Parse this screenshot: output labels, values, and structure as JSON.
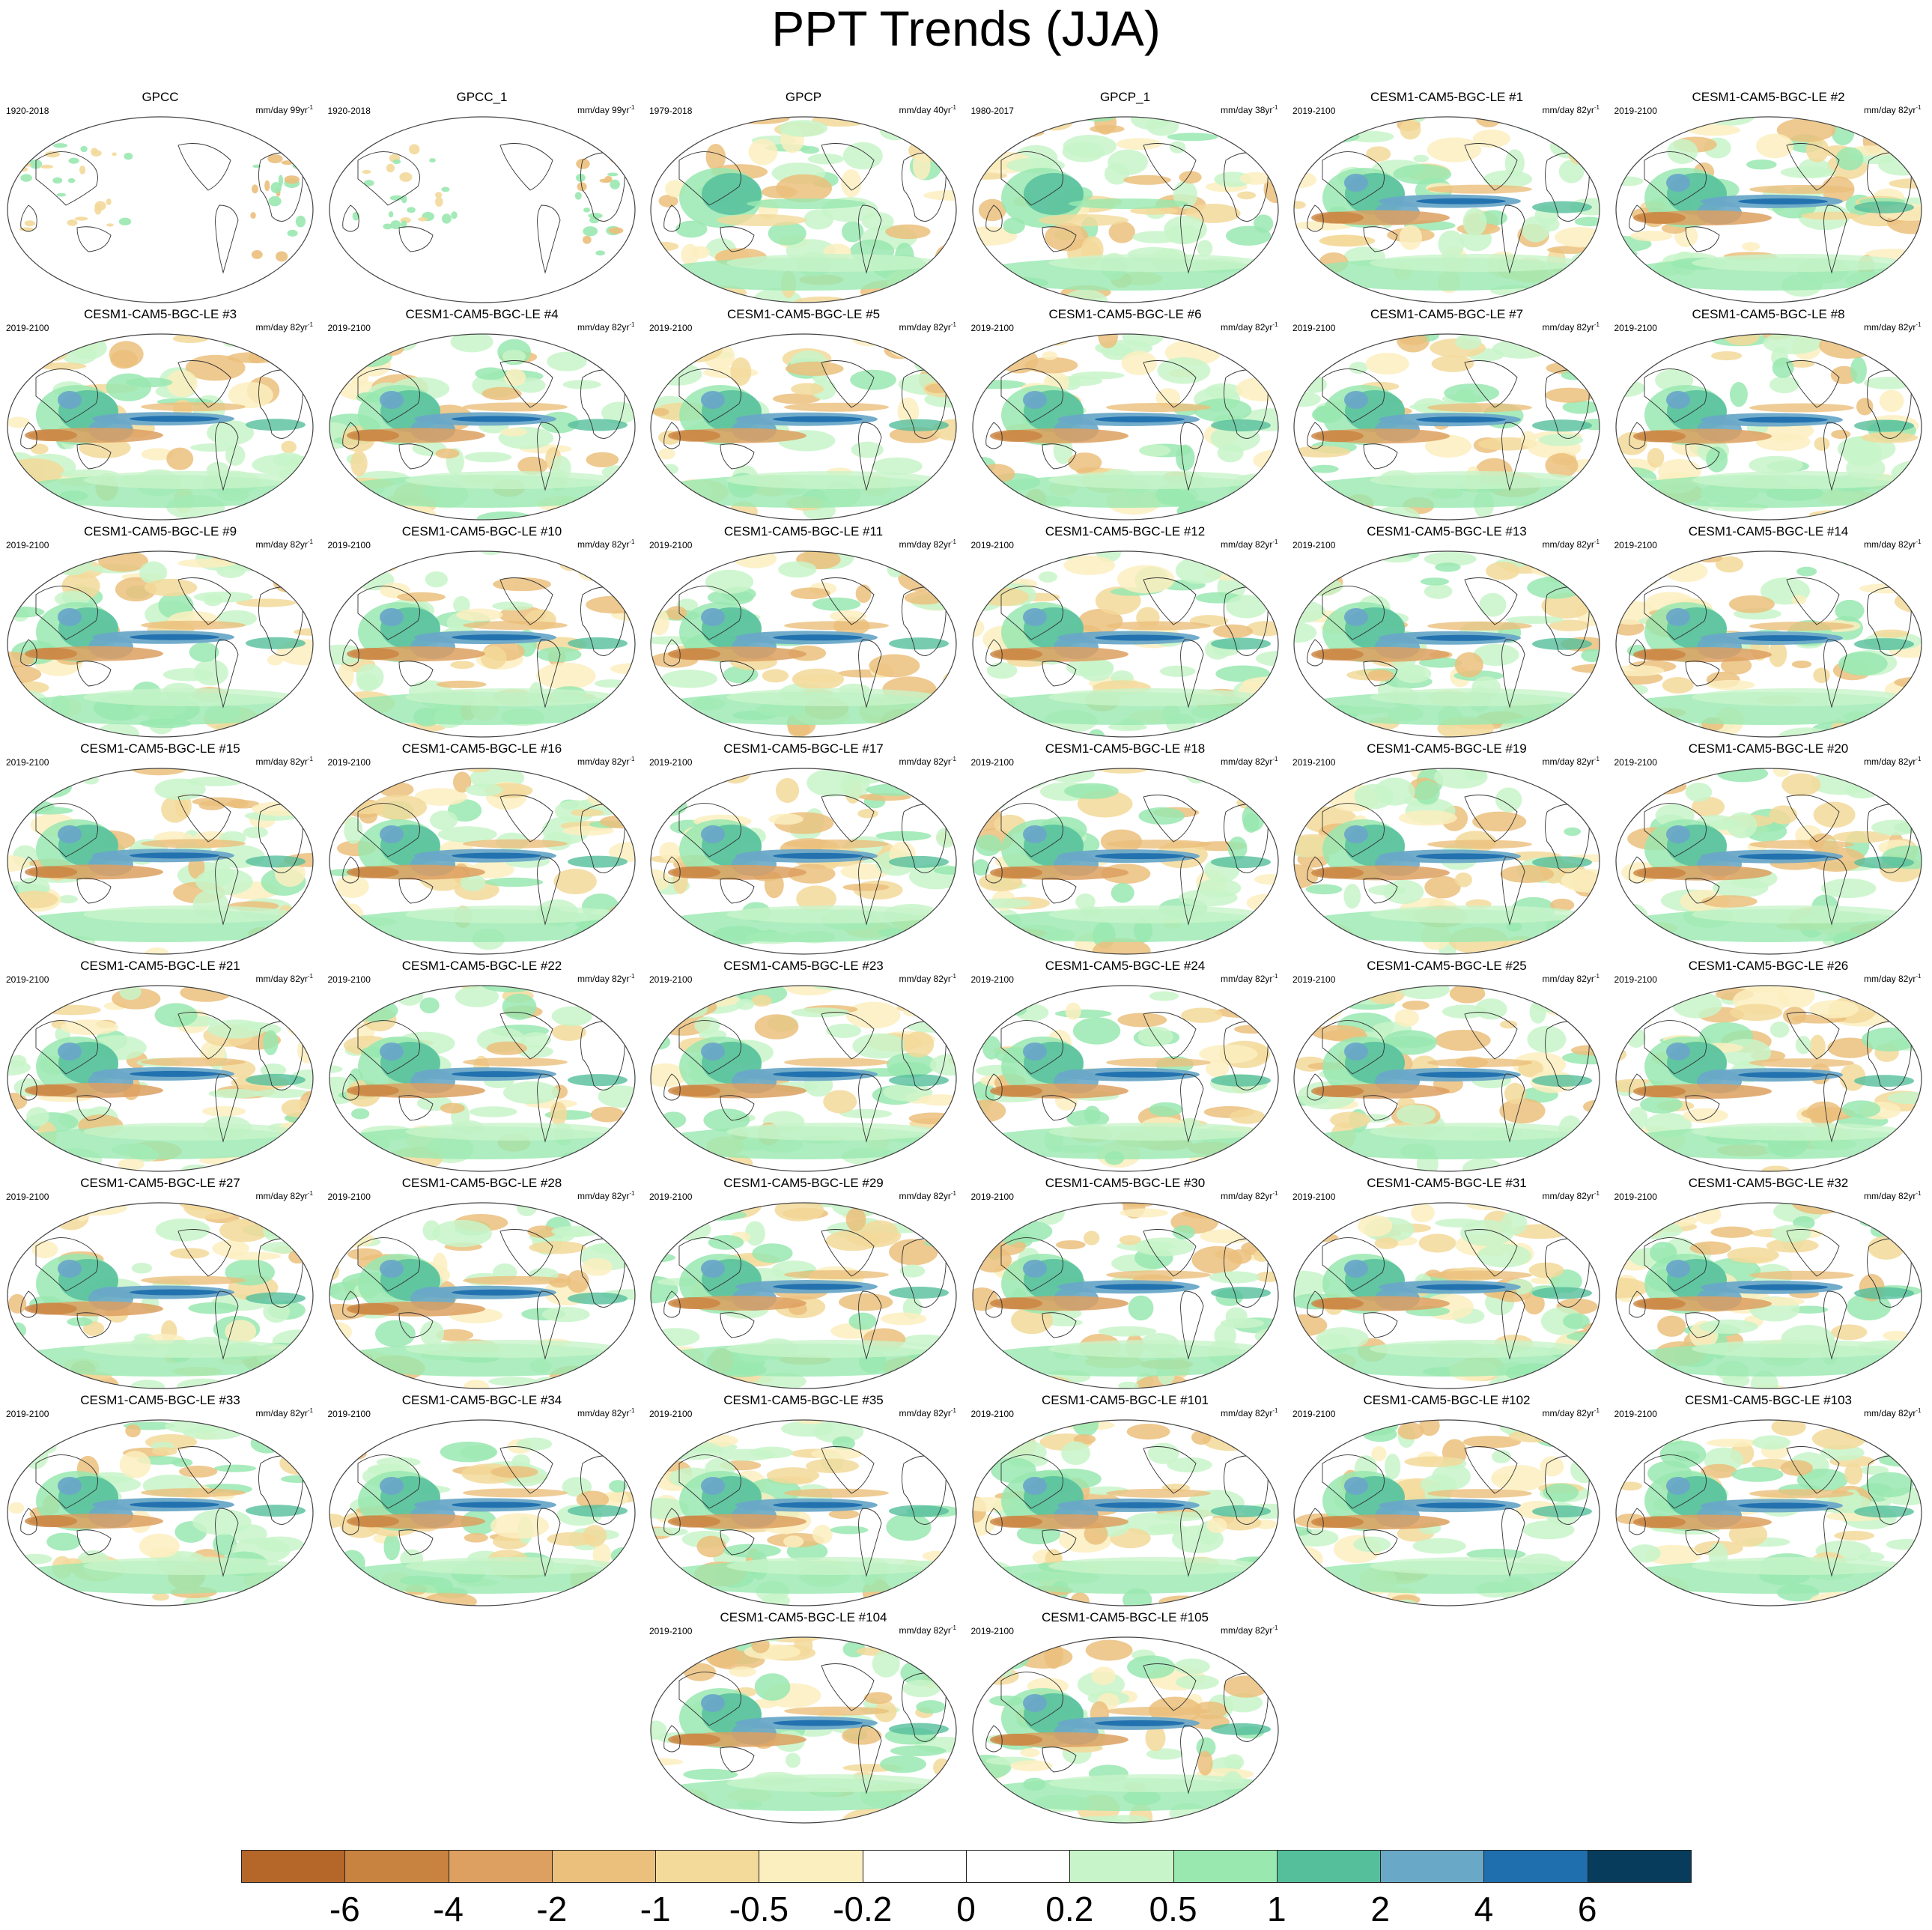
{
  "title": "PPT Trends (JJA)",
  "panels": [
    {
      "title": "GPCC",
      "period": "1920-2018",
      "units": "mm/day 99yr",
      "units_exp": "-1",
      "kind": "obs"
    },
    {
      "title": "GPCC_1",
      "period": "1920-2018",
      "units": "mm/day 99yr",
      "units_exp": "-1",
      "kind": "obs"
    },
    {
      "title": "GPCP",
      "period": "1979-2018",
      "units": "mm/day 40yr",
      "units_exp": "-1",
      "kind": "sat"
    },
    {
      "title": "GPCP_1",
      "period": "1980-2017",
      "units": "mm/day 38yr",
      "units_exp": "-1",
      "kind": "sat"
    },
    {
      "title": "CESM1-CAM5-BGC-LE #1",
      "period": "2019-2100",
      "units": "mm/day 82yr",
      "units_exp": "-1",
      "kind": "model"
    },
    {
      "title": "CESM1-CAM5-BGC-LE #2",
      "period": "2019-2100",
      "units": "mm/day 82yr",
      "units_exp": "-1",
      "kind": "model"
    },
    {
      "title": "CESM1-CAM5-BGC-LE #3",
      "period": "2019-2100",
      "units": "mm/day 82yr",
      "units_exp": "-1",
      "kind": "model"
    },
    {
      "title": "CESM1-CAM5-BGC-LE #4",
      "period": "2019-2100",
      "units": "mm/day 82yr",
      "units_exp": "-1",
      "kind": "model"
    },
    {
      "title": "CESM1-CAM5-BGC-LE #5",
      "period": "2019-2100",
      "units": "mm/day 82yr",
      "units_exp": "-1",
      "kind": "model"
    },
    {
      "title": "CESM1-CAM5-BGC-LE #6",
      "period": "2019-2100",
      "units": "mm/day 82yr",
      "units_exp": "-1",
      "kind": "model"
    },
    {
      "title": "CESM1-CAM5-BGC-LE #7",
      "period": "2019-2100",
      "units": "mm/day 82yr",
      "units_exp": "-1",
      "kind": "model"
    },
    {
      "title": "CESM1-CAM5-BGC-LE #8",
      "period": "2019-2100",
      "units": "mm/day 82yr",
      "units_exp": "-1",
      "kind": "model"
    },
    {
      "title": "CESM1-CAM5-BGC-LE #9",
      "period": "2019-2100",
      "units": "mm/day 82yr",
      "units_exp": "-1",
      "kind": "model"
    },
    {
      "title": "CESM1-CAM5-BGC-LE #10",
      "period": "2019-2100",
      "units": "mm/day 82yr",
      "units_exp": "-1",
      "kind": "model"
    },
    {
      "title": "CESM1-CAM5-BGC-LE #11",
      "period": "2019-2100",
      "units": "mm/day 82yr",
      "units_exp": "-1",
      "kind": "model"
    },
    {
      "title": "CESM1-CAM5-BGC-LE #12",
      "period": "2019-2100",
      "units": "mm/day 82yr",
      "units_exp": "-1",
      "kind": "model"
    },
    {
      "title": "CESM1-CAM5-BGC-LE #13",
      "period": "2019-2100",
      "units": "mm/day 82yr",
      "units_exp": "-1",
      "kind": "model"
    },
    {
      "title": "CESM1-CAM5-BGC-LE #14",
      "period": "2019-2100",
      "units": "mm/day 82yr",
      "units_exp": "-1",
      "kind": "model"
    },
    {
      "title": "CESM1-CAM5-BGC-LE #15",
      "period": "2019-2100",
      "units": "mm/day 82yr",
      "units_exp": "-1",
      "kind": "model"
    },
    {
      "title": "CESM1-CAM5-BGC-LE #16",
      "period": "2019-2100",
      "units": "mm/day 82yr",
      "units_exp": "-1",
      "kind": "model"
    },
    {
      "title": "CESM1-CAM5-BGC-LE #17",
      "period": "2019-2100",
      "units": "mm/day 82yr",
      "units_exp": "-1",
      "kind": "model"
    },
    {
      "title": "CESM1-CAM5-BGC-LE #18",
      "period": "2019-2100",
      "units": "mm/day 82yr",
      "units_exp": "-1",
      "kind": "model"
    },
    {
      "title": "CESM1-CAM5-BGC-LE #19",
      "period": "2019-2100",
      "units": "mm/day 82yr",
      "units_exp": "-1",
      "kind": "model"
    },
    {
      "title": "CESM1-CAM5-BGC-LE #20",
      "period": "2019-2100",
      "units": "mm/day 82yr",
      "units_exp": "-1",
      "kind": "model"
    },
    {
      "title": "CESM1-CAM5-BGC-LE #21",
      "period": "2019-2100",
      "units": "mm/day 82yr",
      "units_exp": "-1",
      "kind": "model"
    },
    {
      "title": "CESM1-CAM5-BGC-LE #22",
      "period": "2019-2100",
      "units": "mm/day 82yr",
      "units_exp": "-1",
      "kind": "model"
    },
    {
      "title": "CESM1-CAM5-BGC-LE #23",
      "period": "2019-2100",
      "units": "mm/day 82yr",
      "units_exp": "-1",
      "kind": "model"
    },
    {
      "title": "CESM1-CAM5-BGC-LE #24",
      "period": "2019-2100",
      "units": "mm/day 82yr",
      "units_exp": "-1",
      "kind": "model"
    },
    {
      "title": "CESM1-CAM5-BGC-LE #25",
      "period": "2019-2100",
      "units": "mm/day 82yr",
      "units_exp": "-1",
      "kind": "model"
    },
    {
      "title": "CESM1-CAM5-BGC-LE #26",
      "period": "2019-2100",
      "units": "mm/day 82yr",
      "units_exp": "-1",
      "kind": "model"
    },
    {
      "title": "CESM1-CAM5-BGC-LE #27",
      "period": "2019-2100",
      "units": "mm/day 82yr",
      "units_exp": "-1",
      "kind": "model"
    },
    {
      "title": "CESM1-CAM5-BGC-LE #28",
      "period": "2019-2100",
      "units": "mm/day 82yr",
      "units_exp": "-1",
      "kind": "model"
    },
    {
      "title": "CESM1-CAM5-BGC-LE #29",
      "period": "2019-2100",
      "units": "mm/day 82yr",
      "units_exp": "-1",
      "kind": "model"
    },
    {
      "title": "CESM1-CAM5-BGC-LE #30",
      "period": "2019-2100",
      "units": "mm/day 82yr",
      "units_exp": "-1",
      "kind": "model"
    },
    {
      "title": "CESM1-CAM5-BGC-LE #31",
      "period": "2019-2100",
      "units": "mm/day 82yr",
      "units_exp": "-1",
      "kind": "model"
    },
    {
      "title": "CESM1-CAM5-BGC-LE #32",
      "period": "2019-2100",
      "units": "mm/day 82yr",
      "units_exp": "-1",
      "kind": "model"
    },
    {
      "title": "CESM1-CAM5-BGC-LE #33",
      "period": "2019-2100",
      "units": "mm/day 82yr",
      "units_exp": "-1",
      "kind": "model"
    },
    {
      "title": "CESM1-CAM5-BGC-LE #34",
      "period": "2019-2100",
      "units": "mm/day 82yr",
      "units_exp": "-1",
      "kind": "model"
    },
    {
      "title": "CESM1-CAM5-BGC-LE #35",
      "period": "2019-2100",
      "units": "mm/day 82yr",
      "units_exp": "-1",
      "kind": "model"
    },
    {
      "title": "CESM1-CAM5-BGC-LE #101",
      "period": "2019-2100",
      "units": "mm/day 82yr",
      "units_exp": "-1",
      "kind": "model"
    },
    {
      "title": "CESM1-CAM5-BGC-LE #102",
      "period": "2019-2100",
      "units": "mm/day 82yr",
      "units_exp": "-1",
      "kind": "model"
    },
    {
      "title": "CESM1-CAM5-BGC-LE #103",
      "period": "2019-2100",
      "units": "mm/day 82yr",
      "units_exp": "-1",
      "kind": "model"
    },
    {
      "title": "CESM1-CAM5-BGC-LE #104",
      "period": "2019-2100",
      "units": "mm/day 82yr",
      "units_exp": "-1",
      "kind": "model"
    },
    {
      "title": "CESM1-CAM5-BGC-LE #105",
      "period": "2019-2100",
      "units": "mm/day 82yr",
      "units_exp": "-1",
      "kind": "model"
    }
  ],
  "colorbar": {
    "colors": [
      "#b5672a",
      "#c98340",
      "#dda060",
      "#ebbf7c",
      "#f3d99a",
      "#fbefbf",
      "#ffffff",
      "#ffffff",
      "#c8f4c9",
      "#99e8b0",
      "#55bf9c",
      "#6aa8c8",
      "#1f6fae",
      "#083c5c"
    ],
    "labels": [
      "-6",
      "-4",
      "-2",
      "-1",
      "-0.5",
      "-0.2",
      "0",
      "0.2",
      "0.5",
      "1",
      "2",
      "4",
      "6"
    ]
  }
}
